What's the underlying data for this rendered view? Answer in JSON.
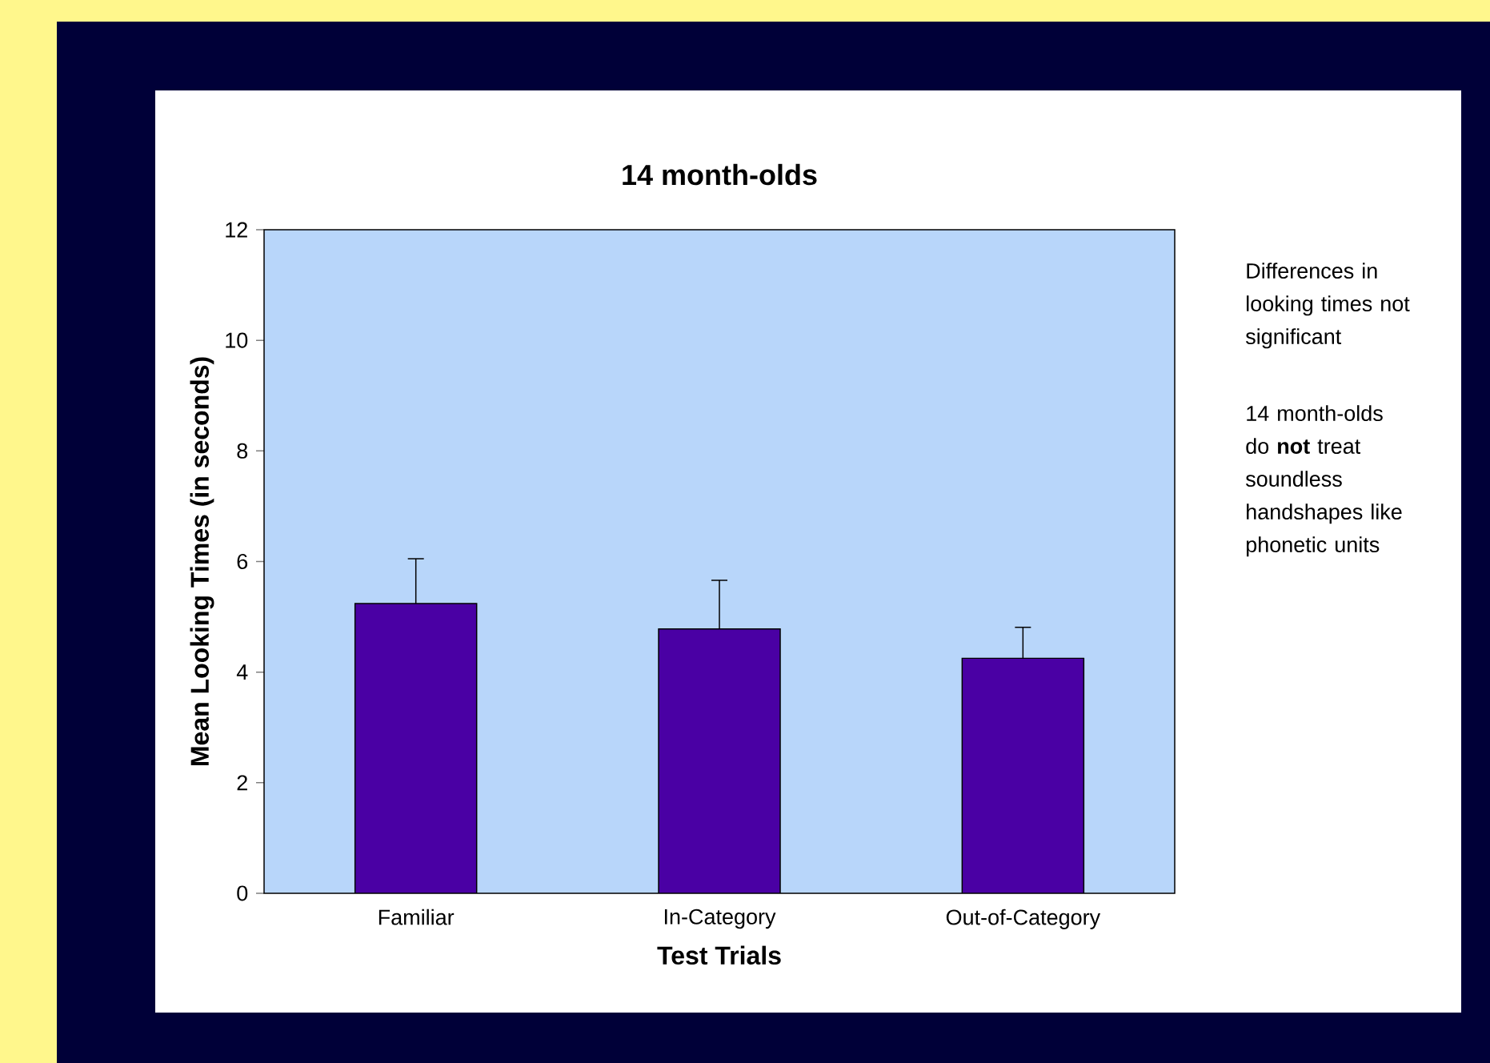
{
  "chart_data": {
    "type": "bar",
    "title": "14 month-olds",
    "xlabel": "Test Trials",
    "ylabel": "Mean Looking Times (in seconds)",
    "categories": [
      "Familiar",
      "In-Category",
      "Out-of-Category"
    ],
    "values": [
      5.24,
      4.78,
      4.25
    ],
    "errors": [
      0.81,
      0.88,
      0.56
    ],
    "color": "#4a00a4",
    "ylim": [
      0,
      12
    ],
    "yticks": [
      0,
      2,
      4,
      6,
      8,
      10,
      12
    ],
    "annotations": [
      "Differences in looking times not significant",
      "14 month-olds do **not** treat soundless handshapes like phonetic units"
    ]
  }
}
